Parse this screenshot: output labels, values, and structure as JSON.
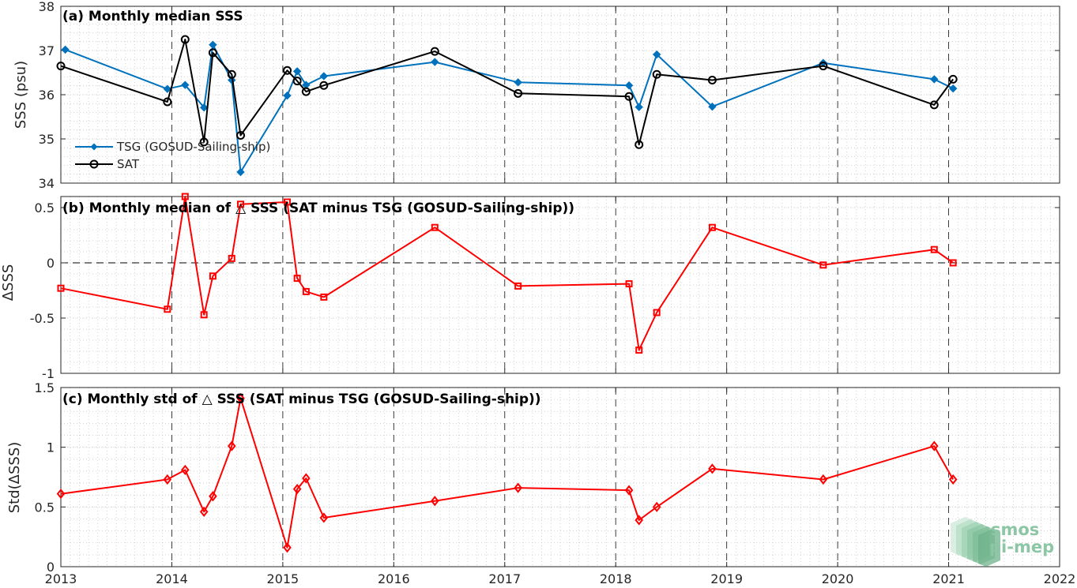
{
  "chart_data": [
    {
      "type": "line",
      "title": "(a) Monthly median SSS",
      "ylabel": "SSS (psu)",
      "xlabel": "",
      "xlim": [
        2013,
        2022
      ],
      "ylim": [
        34,
        38
      ],
      "xticks": [
        "2013",
        "2014",
        "2015",
        "2016",
        "2017",
        "2018",
        "2019",
        "2020",
        "2021",
        "2022"
      ],
      "yticks": [
        "34",
        "35",
        "36",
        "37",
        "38"
      ],
      "grid": true,
      "legend": "middle-left",
      "series": [
        {
          "name": "TSG (GOSUD-Sailing-ship)",
          "color": "#0072bd",
          "marker": "diamond",
          "x": [
            2013.04,
            2013.96,
            2014.12,
            2014.29,
            2014.37,
            2014.54,
            2014.62,
            2015.04,
            2015.13,
            2015.21,
            2015.37,
            2016.37,
            2017.12,
            2018.12,
            2018.21,
            2018.37,
            2018.87,
            2019.87,
            2020.87,
            2021.04
          ],
          "y": [
            37.02,
            36.13,
            36.22,
            35.71,
            37.13,
            36.33,
            34.25,
            35.98,
            36.53,
            36.22,
            36.42,
            36.74,
            36.28,
            36.21,
            35.72,
            36.91,
            35.73,
            36.72,
            36.35,
            36.14
          ]
        },
        {
          "name": "SAT",
          "color": "#000000",
          "marker": "circle",
          "x": [
            2013.0,
            2013.96,
            2014.12,
            2014.29,
            2014.37,
            2014.54,
            2014.62,
            2015.04,
            2015.13,
            2015.21,
            2015.37,
            2016.37,
            2017.12,
            2018.12,
            2018.21,
            2018.37,
            2018.87,
            2019.87,
            2020.87,
            2021.04
          ],
          "y": [
            36.65,
            35.84,
            37.25,
            34.93,
            36.95,
            36.46,
            35.08,
            36.55,
            36.31,
            36.07,
            36.21,
            36.98,
            36.03,
            35.96,
            34.87,
            36.46,
            36.33,
            36.65,
            35.77,
            36.35
          ]
        }
      ],
      "reference_line": null
    },
    {
      "type": "line",
      "title": "(b) Monthly median of △ SSS (SAT minus TSG (GOSUD-Sailing-ship))",
      "ylabel": "ΔSSS",
      "xlabel": "",
      "xlim": [
        2013,
        2022
      ],
      "ylim": [
        -1,
        0.6
      ],
      "xticks": [
        "2013",
        "2014",
        "2015",
        "2016",
        "2017",
        "2018",
        "2019",
        "2020",
        "2021",
        "2022"
      ],
      "yticks": [
        "-1",
        "-0.5",
        "0",
        "0.5"
      ],
      "grid": true,
      "legend": "none",
      "series": [
        {
          "name": "",
          "color": "#ff0000",
          "marker": "square",
          "x": [
            2013.0,
            2013.96,
            2014.12,
            2014.29,
            2014.37,
            2014.54,
            2014.62,
            2015.04,
            2015.13,
            2015.21,
            2015.37,
            2016.37,
            2017.12,
            2018.12,
            2018.21,
            2018.37,
            2018.87,
            2019.87,
            2020.87,
            2021.04
          ],
          "y": [
            -0.23,
            -0.42,
            0.6,
            -0.47,
            -0.12,
            0.04,
            0.53,
            0.55,
            -0.14,
            -0.26,
            -0.31,
            0.32,
            -0.21,
            -0.19,
            -0.79,
            -0.45,
            0.32,
            -0.02,
            0.12,
            0.0
          ]
        }
      ],
      "reference_line": 0
    },
    {
      "type": "line",
      "title": "(c) Monthly std of △ SSS (SAT minus TSG (GOSUD-Sailing-ship))",
      "ylabel": "Std(ΔSSS)",
      "xlabel": "",
      "xlim": [
        2013,
        2022
      ],
      "ylim": [
        0,
        1.5
      ],
      "xticks": [
        "2013",
        "2014",
        "2015",
        "2016",
        "2017",
        "2018",
        "2019",
        "2020",
        "2021",
        "2022"
      ],
      "yticks": [
        "0",
        "0.5",
        "1",
        "1.5"
      ],
      "grid": true,
      "legend": "none",
      "series": [
        {
          "name": "",
          "color": "#ff0000",
          "marker": "diamond-open",
          "x": [
            2013.0,
            2013.96,
            2014.12,
            2014.29,
            2014.37,
            2014.54,
            2014.62,
            2015.04,
            2015.13,
            2015.21,
            2015.37,
            2016.37,
            2017.12,
            2018.12,
            2018.21,
            2018.37,
            2018.87,
            2019.87,
            2020.87,
            2021.04
          ],
          "y": [
            0.61,
            0.73,
            0.81,
            0.46,
            0.59,
            1.01,
            1.41,
            0.16,
            0.65,
            0.74,
            0.41,
            0.55,
            0.66,
            0.64,
            0.39,
            0.5,
            0.82,
            0.73,
            1.01,
            0.73
          ]
        }
      ],
      "reference_line": null
    }
  ],
  "logo": {
    "line1": "smos",
    "line2": "pi-mep",
    "color": "#8cc6a4"
  }
}
